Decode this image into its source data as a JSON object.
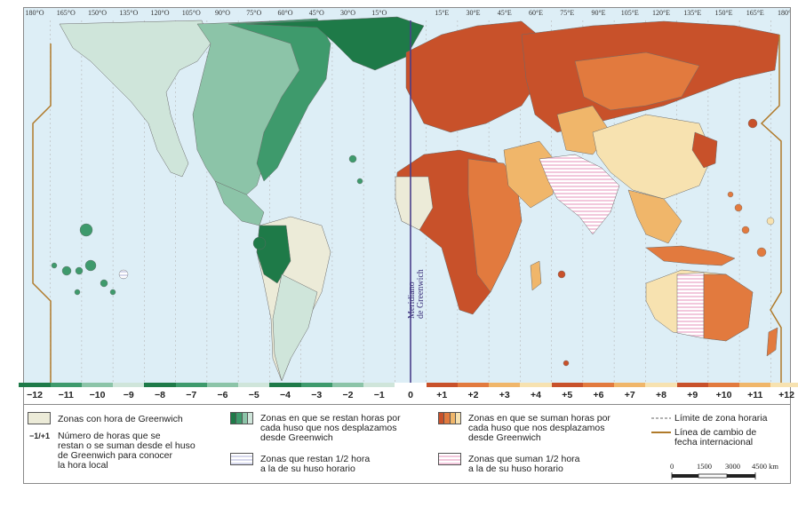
{
  "map": {
    "longitude_labels": [
      "180°O",
      "165°O",
      "150°O",
      "135°O",
      "120°O",
      "105°O",
      "90°O",
      "75°O",
      "60°O",
      "45°O",
      "30°O",
      "15°O",
      "15°E",
      "30°E",
      "45°E",
      "60°E",
      "75°E",
      "90°E",
      "105°E",
      "120°E",
      "135°E",
      "150°E",
      "165°E",
      "180°E"
    ],
    "meridian_label_line1": "Meridiano",
    "meridian_label_line2": "de Greenwich",
    "colors": {
      "ocean": "#ddeef6",
      "gmt": "#ecebd8",
      "minus_light": "#cfe5da",
      "minus_mid": "#8cc4a8",
      "minus_dark": "#3e9a6c",
      "minus_darkest": "#1e7a48",
      "plus_light": "#f7e2b0",
      "plus_mid": "#f0b66a",
      "plus_dark": "#e27a3e",
      "plus_darkest": "#c8512a",
      "half_minus": "#d6d8ec",
      "half_plus": "#f2c8dc",
      "dateline": "#b07a2a",
      "greenwich": "#4a3f8a"
    }
  },
  "offsets": [
    "−12",
    "−11",
    "−10",
    "−9",
    "−8",
    "−7",
    "−6",
    "−5",
    "−4",
    "−3",
    "−2",
    "−1",
    "0",
    "+1",
    "+2",
    "+3",
    "+4",
    "+5",
    "+6",
    "+7",
    "+8",
    "+9",
    "+10",
    "+11",
    "+12"
  ],
  "legend": {
    "gmt_zone": "Zonas con hora de Greenwich",
    "sign_symbol": "−1/+1",
    "sign_text_1": "Número de horas que se",
    "sign_text_2": "restan o se suman desde el huso",
    "sign_text_3": "de Greenwich para conocer",
    "sign_text_4": "la hora local",
    "minus_text_1": "Zonas en que se restan horas por",
    "minus_text_2": "cada huso que nos desplazamos",
    "minus_text_3": "desde Greenwich",
    "half_minus_1": "Zonas que restan 1/2 hora",
    "half_minus_2": "a la de su huso horario",
    "plus_text_1": "Zonas en que se suman horas por",
    "plus_text_2": "cada huso que nos desplazamos",
    "plus_text_3": "desde Greenwich",
    "half_plus_1": "Zonas que suman 1/2 hora",
    "half_plus_2": "a la de su huso horario",
    "zone_limit": "Límite de zona horaria",
    "dateline_1": "Línea de cambio de",
    "dateline_2": "fecha internacional",
    "scale_0": "0",
    "scale_1": "1500",
    "scale_2": "3000",
    "scale_3": "4500 km"
  }
}
